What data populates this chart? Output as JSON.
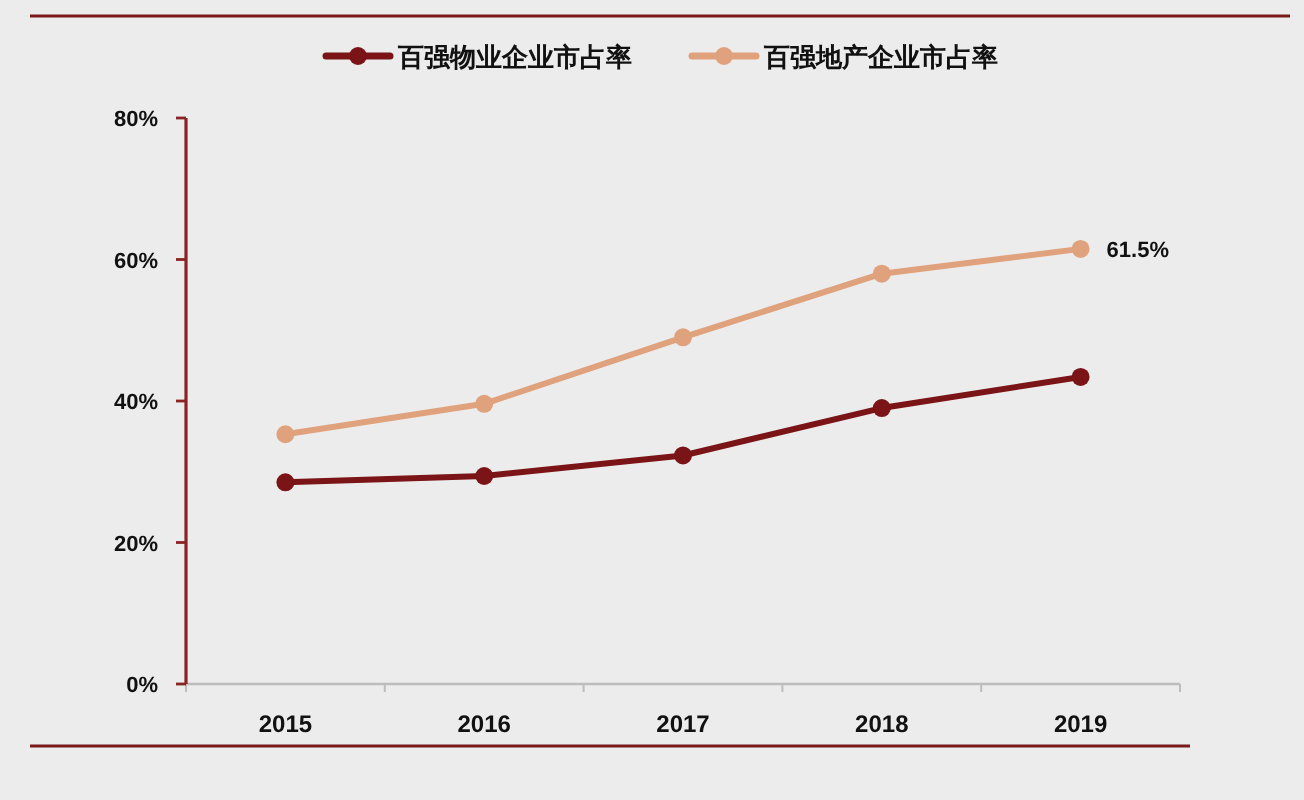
{
  "chart_data": {
    "type": "line",
    "categories": [
      "2015",
      "2016",
      "2017",
      "2018",
      "2019"
    ],
    "series": [
      {
        "name": "百强物业企业市占率",
        "color": "#7a1416",
        "values": [
          28.5,
          29.4,
          32.3,
          39.0,
          43.4
        ]
      },
      {
        "name": "百强地产企业市占率",
        "color": "#e0a27c",
        "values": [
          35.3,
          39.6,
          49.0,
          58.0,
          61.5
        ],
        "value_labels": [
          null,
          null,
          null,
          null,
          "61.5%"
        ]
      }
    ],
    "ylim": [
      0,
      80
    ],
    "yticks": [
      {
        "value": 0,
        "label": "0%"
      },
      {
        "value": 20,
        "label": "20%"
      },
      {
        "value": 40,
        "label": "40%"
      },
      {
        "value": 60,
        "label": "60%"
      },
      {
        "value": 80,
        "label": "80%"
      }
    ],
    "legend": "top",
    "marker": "circle"
  }
}
